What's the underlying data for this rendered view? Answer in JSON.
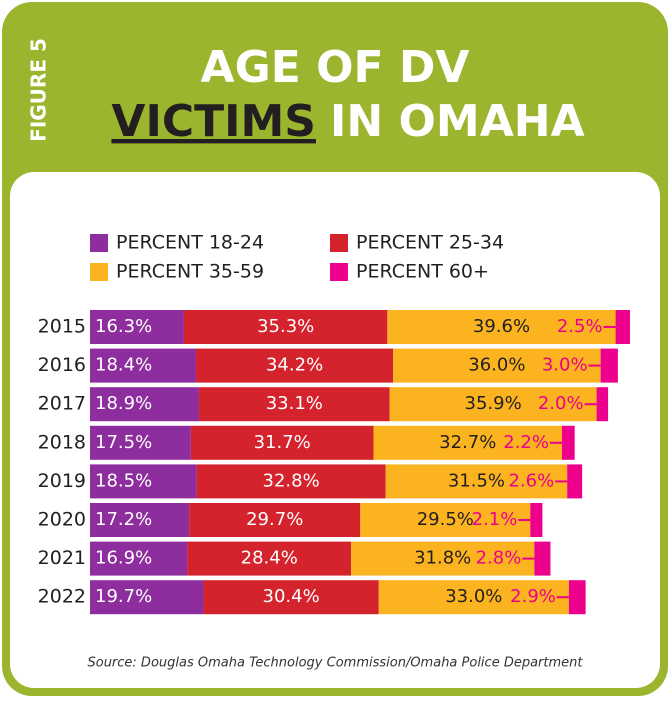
{
  "figure_label": "FIGURE 5",
  "chart_data": {
    "type": "stacked-bar-horizontal",
    "title": [
      "AGE OF DV",
      "VICTIMS",
      "IN OMAHA"
    ],
    "categories": [
      "2015",
      "2016",
      "2017",
      "2018",
      "2019",
      "2020",
      "2021",
      "2022"
    ],
    "series": [
      {
        "name": "PERCENT 18-24",
        "color": "#8e2d9d",
        "values": [
          16.3,
          18.4,
          18.9,
          17.5,
          18.5,
          17.2,
          16.9,
          19.7
        ],
        "value_labels": [
          "16.3%",
          "18.4%",
          "18.9%",
          "17.5%",
          "18.5%",
          "17.2%",
          "16.9%",
          "19.7%"
        ]
      },
      {
        "name": "PERCENT 25-34",
        "color": "#d4232d",
        "values": [
          35.3,
          34.2,
          33.1,
          31.7,
          32.8,
          29.7,
          28.4,
          30.4
        ],
        "value_labels": [
          "35.3%",
          "34.2%",
          "33.1%",
          "31.7%",
          "32.8%",
          "29.7%",
          "28.4%",
          "30.4%"
        ]
      },
      {
        "name": "PERCENT 35-59",
        "color": "#fbb320",
        "values": [
          39.6,
          36.0,
          35.9,
          32.7,
          31.5,
          29.5,
          31.8,
          33.0
        ],
        "value_labels": [
          "39.6%",
          "36.0%",
          "35.9%",
          "32.7%",
          "31.5%",
          "29.5%",
          "31.8%",
          "33.0%"
        ]
      },
      {
        "name": "PERCENT 60+",
        "color": "#ec008c",
        "values": [
          2.5,
          3.0,
          2.0,
          2.2,
          2.6,
          2.1,
          2.8,
          2.9
        ],
        "value_labels": [
          "2.5%",
          "3.0%",
          "2.0%",
          "2.2%",
          "2.6%",
          "2.1%",
          "2.8%",
          "2.9%"
        ]
      }
    ],
    "source": "Source: Douglas Omaha Technology Commission/Omaha Police Department"
  }
}
